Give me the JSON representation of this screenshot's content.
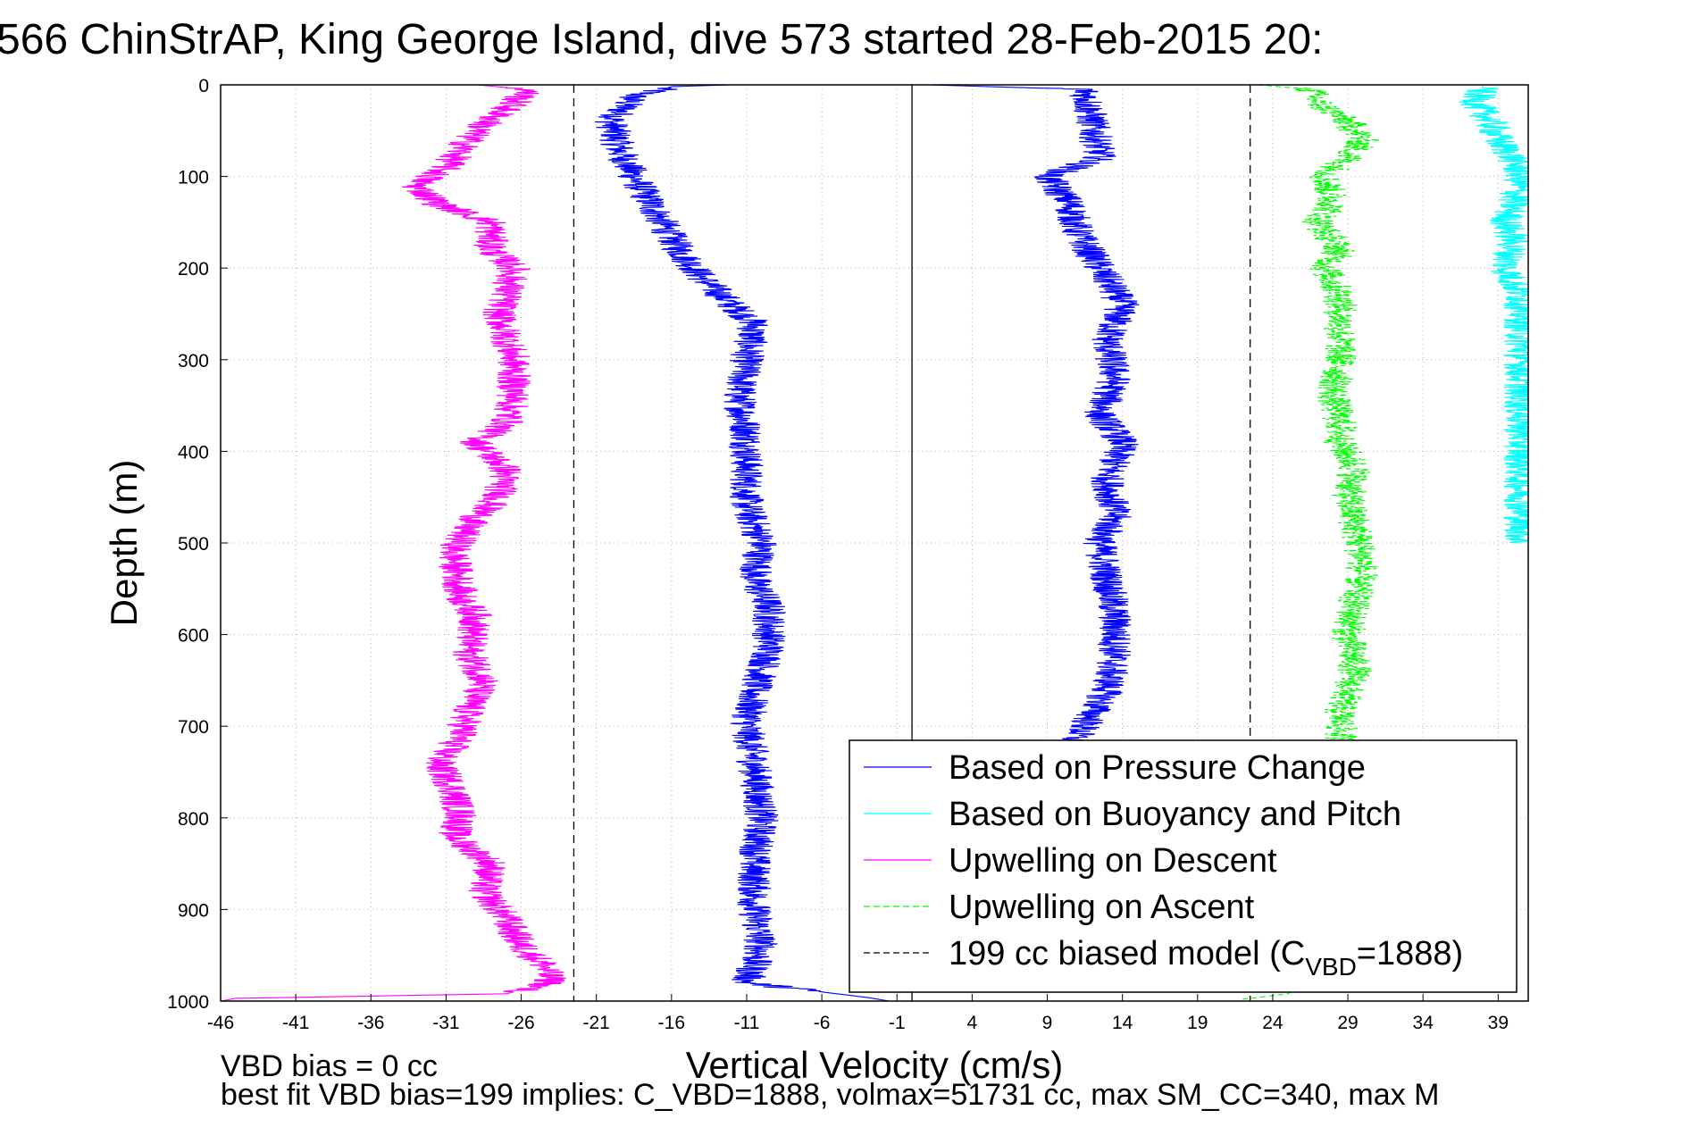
{
  "chart_data": {
    "type": "line",
    "title": "566 ChinStrAP, King George Island, dive 573 started 28-Feb-2015 20:",
    "xlabel": "Vertical Velocity (cm/s)",
    "ylabel": "Depth (m)",
    "xlim": [
      -46,
      41
    ],
    "ylim": [
      0,
      1000
    ],
    "y_inverted": true,
    "grid": true,
    "x_ticks": [
      -46,
      -41,
      -36,
      -31,
      -26,
      -21,
      -16,
      -11,
      -6,
      -1,
      4,
      9,
      14,
      19,
      24,
      29,
      34,
      39
    ],
    "y_ticks": [
      0,
      100,
      200,
      300,
      400,
      500,
      600,
      700,
      800,
      900,
      1000
    ],
    "legend_position": "bottom-right",
    "legend": [
      {
        "label": "Based on Pressure Change",
        "color": "#0000ff",
        "dash": "solid"
      },
      {
        "label": "Based on Buoyancy and Pitch",
        "color": "#00ffff",
        "dash": "solid"
      },
      {
        "label": "Upwelling on Descent",
        "color": "#ff00ff",
        "dash": "solid"
      },
      {
        "label": "Upwelling on Ascent",
        "color": "#00ff00",
        "dash": "dashed"
      },
      {
        "label_main": "199 cc biased model (C",
        "label_sub": "VBD",
        "label_end": "=1888)",
        "color": "#000000",
        "dash": "dashed"
      }
    ],
    "reference_lines": [
      {
        "x": -22.5,
        "style": "dashed",
        "color": "#000000"
      },
      {
        "x": 0,
        "style": "solid",
        "color": "#000000"
      },
      {
        "x": 22.5,
        "style": "dashed",
        "color": "#000000"
      }
    ],
    "series": [
      {
        "name": "Based on Pressure Change",
        "role": "descent",
        "color": "#0000ff",
        "dash": "solid",
        "points": [
          [
            -12,
            0
          ],
          [
            -16,
            2
          ],
          [
            -18.5,
            12
          ],
          [
            -20,
            40
          ],
          [
            -19.5,
            70
          ],
          [
            -18.5,
            100
          ],
          [
            -17,
            140
          ],
          [
            -15.5,
            180
          ],
          [
            -14,
            210
          ],
          [
            -12,
            240
          ],
          [
            -10.5,
            260
          ],
          [
            -11,
            300
          ],
          [
            -11.5,
            340
          ],
          [
            -11,
            380
          ],
          [
            -11,
            420
          ],
          [
            -11,
            460
          ],
          [
            -10,
            500
          ],
          [
            -10.5,
            540
          ],
          [
            -9.5,
            570
          ],
          [
            -9.5,
            620
          ],
          [
            -10.5,
            660
          ],
          [
            -11,
            700
          ],
          [
            -10.5,
            740
          ],
          [
            -10,
            800
          ],
          [
            -10.5,
            850
          ],
          [
            -10.5,
            900
          ],
          [
            -10,
            940
          ],
          [
            -11,
            980
          ],
          [
            -3,
            996
          ],
          [
            -1.5,
            1000
          ]
        ]
      },
      {
        "name": "Based on Pressure Change",
        "role": "ascent",
        "color": "#0000ff",
        "dash": "solid",
        "points": [
          [
            1,
            0
          ],
          [
            11.5,
            5
          ],
          [
            12,
            40
          ],
          [
            12.5,
            80
          ],
          [
            9,
            100
          ],
          [
            10.5,
            130
          ],
          [
            11,
            160
          ],
          [
            12.5,
            200
          ],
          [
            14,
            240
          ],
          [
            13,
            280
          ],
          [
            13.5,
            320
          ],
          [
            12.5,
            360
          ],
          [
            14,
            390
          ],
          [
            13,
            430
          ],
          [
            13.5,
            470
          ],
          [
            12.5,
            500
          ],
          [
            13,
            540
          ],
          [
            13.5,
            580
          ],
          [
            13.5,
            620
          ],
          [
            13,
            660
          ],
          [
            11.5,
            700
          ],
          [
            10.5,
            720
          ]
        ]
      },
      {
        "name": "Based on Buoyancy and Pitch",
        "role": "ascent",
        "color": "#00ffff",
        "dash": "solid",
        "points": [
          [
            38,
            0
          ],
          [
            37.5,
            20
          ],
          [
            38.5,
            40
          ],
          [
            39,
            60
          ],
          [
            40,
            80
          ],
          [
            40.5,
            100
          ],
          [
            40,
            130
          ],
          [
            39.5,
            150
          ],
          [
            40,
            170
          ],
          [
            39.5,
            200
          ],
          [
            40.5,
            230
          ],
          [
            40.5,
            300
          ],
          [
            40.5,
            400
          ],
          [
            40.5,
            500
          ]
        ]
      },
      {
        "name": "Upwelling on Descent",
        "color": "#ff00ff",
        "dash": "solid",
        "points": [
          [
            -29,
            0
          ],
          [
            -25.5,
            5
          ],
          [
            -26.5,
            20
          ],
          [
            -29,
            50
          ],
          [
            -30,
            70
          ],
          [
            -31,
            90
          ],
          [
            -32,
            100
          ],
          [
            -33,
            110
          ],
          [
            -31.5,
            130
          ],
          [
            -28,
            150
          ],
          [
            -28,
            180
          ],
          [
            -26.5,
            200
          ],
          [
            -27,
            230
          ],
          [
            -27.5,
            250
          ],
          [
            -26.5,
            300
          ],
          [
            -26.5,
            340
          ],
          [
            -27,
            370
          ],
          [
            -29,
            390
          ],
          [
            -27,
            420
          ],
          [
            -27.5,
            450
          ],
          [
            -29.5,
            480
          ],
          [
            -30.5,
            510
          ],
          [
            -30,
            560
          ],
          [
            -29,
            580
          ],
          [
            -29.5,
            620
          ],
          [
            -28.5,
            650
          ],
          [
            -29.5,
            680
          ],
          [
            -30,
            710
          ],
          [
            -31.5,
            740
          ],
          [
            -30.5,
            770
          ],
          [
            -30,
            800
          ],
          [
            -30.5,
            820
          ],
          [
            -28,
            850
          ],
          [
            -28.5,
            880
          ],
          [
            -27,
            910
          ],
          [
            -26,
            940
          ],
          [
            -24.5,
            960
          ],
          [
            -24,
            980
          ],
          [
            -27,
            992
          ],
          [
            -45,
            997
          ],
          [
            -46,
            1000
          ]
        ]
      },
      {
        "name": "Upwelling on Ascent",
        "color": "#00ff00",
        "dash": "dashed",
        "points": [
          [
            23,
            0
          ],
          [
            26.5,
            5
          ],
          [
            27,
            20
          ],
          [
            29,
            40
          ],
          [
            30,
            60
          ],
          [
            29,
            80
          ],
          [
            27.5,
            100
          ],
          [
            28,
            130
          ],
          [
            27,
            150
          ],
          [
            28.5,
            180
          ],
          [
            27.5,
            200
          ],
          [
            28.5,
            230
          ],
          [
            28.5,
            260
          ],
          [
            28.5,
            300
          ],
          [
            28,
            340
          ],
          [
            28.5,
            370
          ],
          [
            28.5,
            390
          ],
          [
            29.5,
            420
          ],
          [
            29,
            450
          ],
          [
            29.5,
            480
          ],
          [
            30,
            520
          ],
          [
            29.5,
            560
          ],
          [
            29,
            600
          ],
          [
            29.5,
            640
          ],
          [
            28.5,
            680
          ],
          [
            28.5,
            720
          ],
          [
            29,
            760
          ],
          [
            28.5,
            800
          ],
          [
            29,
            840
          ],
          [
            28.5,
            880
          ],
          [
            29,
            920
          ],
          [
            29,
            960
          ],
          [
            25,
            992
          ],
          [
            22,
            998
          ]
        ]
      }
    ]
  },
  "footnotes": {
    "line1": "VBD bias = 0 cc",
    "line2": "best fit VBD bias=199 implies: C_VBD=1888, volmax=51731 cc, max SM_CC=340, max M"
  }
}
